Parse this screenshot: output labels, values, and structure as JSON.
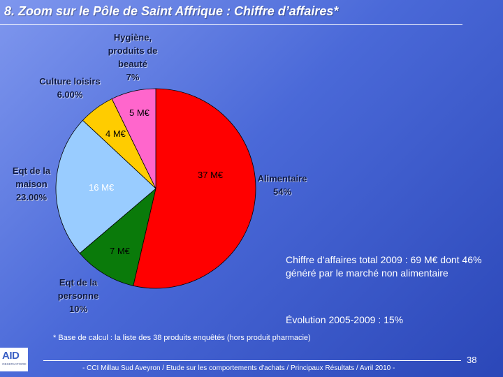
{
  "header": {
    "title": "8. Zoom sur le Pôle de Saint Affrique : Chiffre d’affaires*"
  },
  "chart_data": {
    "type": "pie",
    "unit": "M€",
    "slices": [
      {
        "name": "Alimentaire",
        "value": 37,
        "label": "37 M€",
        "percent_label": "54%",
        "color": "#ff0000"
      },
      {
        "name": "Eqt de la personne",
        "value": 7,
        "label": "7 M€",
        "percent_label": "10%",
        "color": "#0a7a0a"
      },
      {
        "name": "Eqt de la maison",
        "value": 16,
        "label": "16 M€",
        "percent_label": "23.00%",
        "color": "#99ccff"
      },
      {
        "name": "Culture loisirs",
        "value": 4,
        "label": "4 M€",
        "percent_label": "6.00%",
        "color": "#ffcc00"
      },
      {
        "name": "Hygiène, produits de beauté",
        "value": 5,
        "label": "5 M€",
        "percent_label": "7%",
        "color": "#ff66cc"
      }
    ],
    "labels": {
      "alimentaire": "Alimentaire",
      "personne_1": "Eqt de la",
      "personne_2": "personne",
      "maison_1": "Eqt de la",
      "maison_2": "maison",
      "culture": "Culture loisirs",
      "hygiene_1": "Hygiène,",
      "hygiene_2": "produits de",
      "hygiene_3": "beauté"
    }
  },
  "info": {
    "total_text": "Chiffre d’affaires total 2009 : 69 M€ dont 46% généré par le marché non alimentaire",
    "evolution_text": "Évolution 2005-2009 : 15%"
  },
  "footnote": "* Base de calcul : la liste des 38 produits enquêtés (hors produit pharmacie)",
  "footer": {
    "page_number": "38",
    "source": "- CCI Millau Sud Aveyron / Etude sur les comportements d'achats / Principaux Résultats / Avril 2010 -",
    "logo_text": "AID",
    "logo_subtext": "OBSERVATOIRE"
  }
}
